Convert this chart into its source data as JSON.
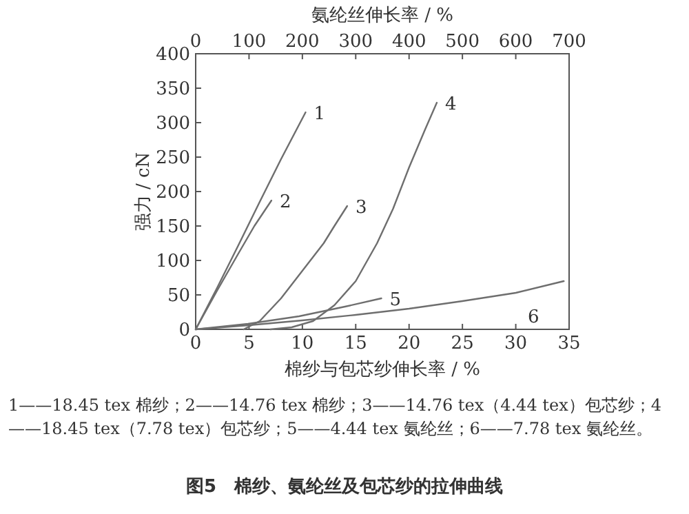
{
  "chart_data": {
    "type": "line",
    "title": "图5　棉纱、氨纶丝及包芯纱的拉伸曲线",
    "xlabel": "棉纱与包芯纱伸长率 / %",
    "x2label": "氨纶丝伸长率 / %",
    "ylabel": "强力 / cN",
    "xlim": [
      0,
      35
    ],
    "xticks": [
      0,
      5,
      10,
      15,
      20,
      25,
      30,
      35
    ],
    "x2lim": [
      0,
      700
    ],
    "x2ticks": [
      0,
      100,
      200,
      300,
      400,
      500,
      600,
      700
    ],
    "ylim": [
      0,
      400
    ],
    "yticks": [
      0,
      50,
      100,
      150,
      200,
      250,
      300,
      350,
      400
    ],
    "grid": false,
    "marker": "none",
    "line_style": "solid",
    "annotations": [
      "1——18.45 tex 棉纱；2——14.76 tex 棉纱；3——14.76 tex（4.44 tex）包芯纱；4——18.45 tex（7.78 tex）包芯纱；5——4.44 tex 氨纶丝；6——7.78 tex 氨纶丝。"
    ],
    "series": [
      {
        "name": "1",
        "color": "#6e6e6e",
        "x": [
          0,
          2,
          4,
          6,
          8,
          10.3
        ],
        "values": [
          0,
          60,
          122,
          185,
          247,
          315
        ]
      },
      {
        "name": "2",
        "color": "#6e6e6e",
        "x": [
          0,
          2,
          4,
          5.5,
          7.1
        ],
        "values": [
          0,
          56,
          110,
          150,
          187
        ]
      },
      {
        "name": "3",
        "color": "#6e6e6e",
        "x": [
          4.5,
          6,
          8,
          10,
          11,
          12,
          13,
          14.2
        ],
        "values": [
          0,
          12,
          45,
          85,
          105,
          125,
          150,
          179
        ]
      },
      {
        "name": "4",
        "color": "#6e6e6e",
        "x": [
          7,
          9,
          11,
          13,
          15,
          17,
          18.5,
          20,
          21.5,
          22.6
        ],
        "values": [
          0,
          3,
          12,
          35,
          70,
          125,
          175,
          235,
          290,
          329
        ]
      },
      {
        "name": "5",
        "color": "#6e6e6e",
        "x": [
          0,
          4.9,
          9.7,
          14,
          17.4
        ],
        "values": [
          0,
          8,
          19,
          33,
          45
        ]
      },
      {
        "name": "6",
        "color": "#6e6e6e",
        "axis": "x2",
        "x": [
          0,
          100,
          200,
          300,
          400,
          500,
          600,
          690
        ],
        "values": [
          0,
          6,
          13,
          21,
          30,
          41,
          53,
          70
        ]
      }
    ]
  }
}
